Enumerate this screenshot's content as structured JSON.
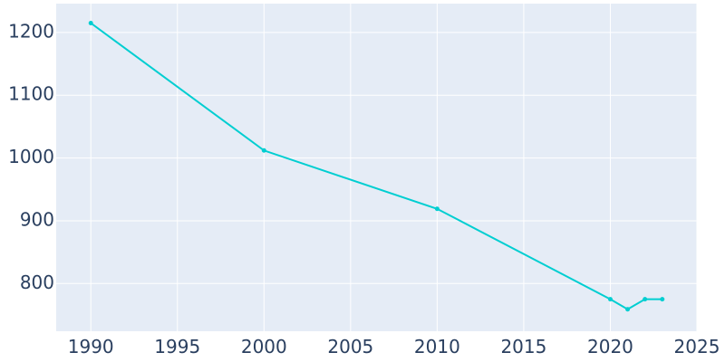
{
  "chart_data": {
    "type": "line",
    "title": "",
    "xlabel": "",
    "ylabel": "",
    "xlim": [
      1988,
      2025
    ],
    "ylim": [
      724,
      1246
    ],
    "xticks": [
      1990,
      1995,
      2000,
      2005,
      2010,
      2015,
      2020,
      2025
    ],
    "yticks": [
      800,
      900,
      1000,
      1100,
      1200
    ],
    "grid": true,
    "legend": "none",
    "colors": {
      "line": "#00ced1",
      "plot_bg": "#e5ecf6",
      "grid": "#ffffff",
      "text": "#2a3f5f"
    },
    "series": [
      {
        "x": [
          1990,
          2000,
          2010,
          2020,
          2021,
          2022,
          2023
        ],
        "y": [
          1215,
          1012,
          919,
          775,
          759,
          775,
          775
        ]
      }
    ]
  }
}
